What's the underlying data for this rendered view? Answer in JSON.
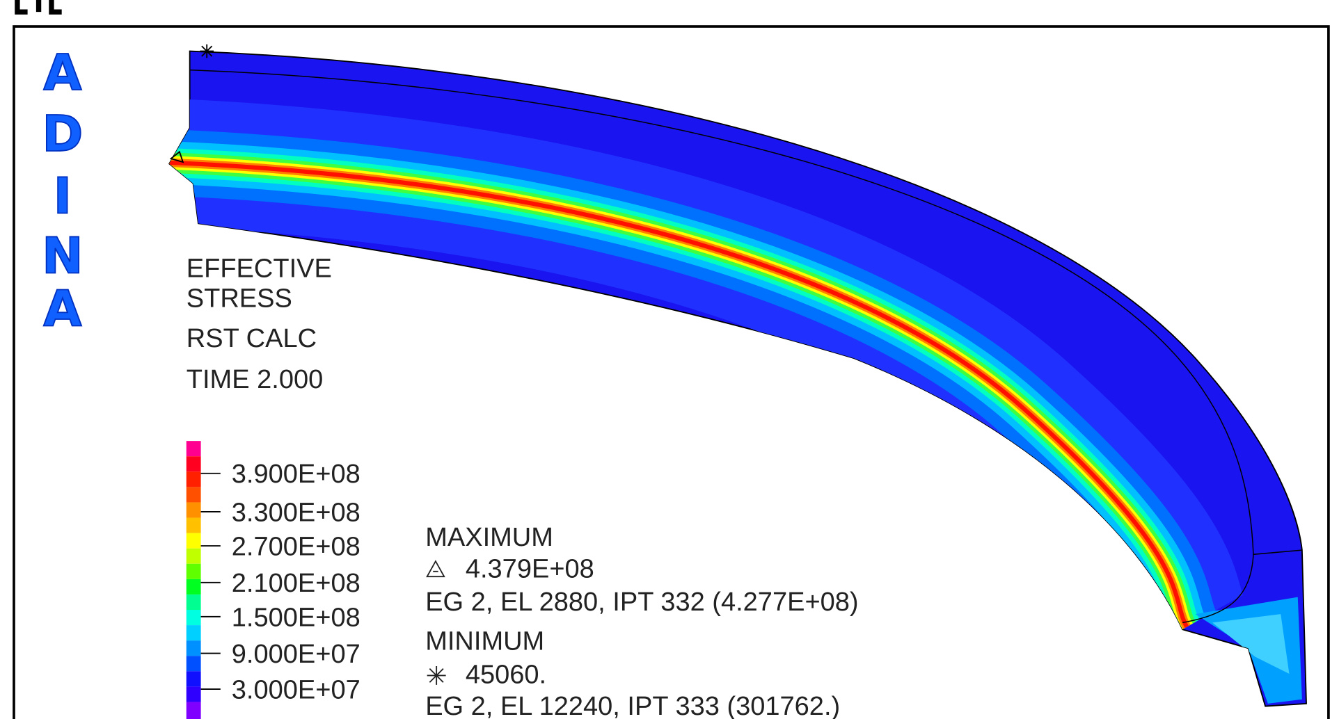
{
  "logo": [
    "A",
    "D",
    "I",
    "N",
    "A"
  ],
  "plot": {
    "variable": [
      "EFFECTIVE",
      "STRESS"
    ],
    "calc": "RST CALC",
    "time": "TIME 2.000"
  },
  "legend": {
    "labels": [
      "3.900E+08",
      "3.300E+08",
      "2.700E+08",
      "2.100E+08",
      "1.500E+08",
      "9.000E+07",
      "3.000E+07"
    ]
  },
  "extremes": {
    "max_title": "MAXIMUM",
    "max_value": "4.379E+08",
    "max_location": "EG 2, EL 2880, IPT 332 (4.277E+08)",
    "min_title": "MINIMUM",
    "min_value": "45060.",
    "min_location": "EG 2, EL 12240, IPT 333 (301762.)"
  }
}
